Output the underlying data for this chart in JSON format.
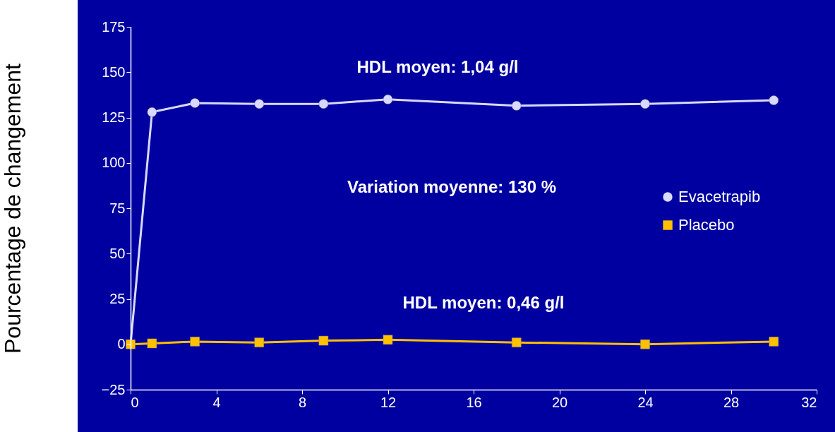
{
  "chart_data": {
    "type": "line",
    "ylabel": "Pourcentage de changement",
    "x": [
      0,
      1,
      3,
      6,
      9,
      12,
      18,
      24,
      30
    ],
    "series": [
      {
        "name": "Evacetrapib",
        "color": "#d9d9ff",
        "marker": "circle",
        "values": [
          0,
          128,
          133,
          132.5,
          132.5,
          135,
          131.5,
          132.5,
          134.5
        ]
      },
      {
        "name": "Placebo",
        "color": "#ffc000",
        "marker": "square",
        "values": [
          0,
          0.5,
          1.5,
          1,
          2,
          2.5,
          1,
          0,
          1.5
        ]
      }
    ],
    "xlim": [
      0,
      32
    ],
    "xticks": [
      0,
      4,
      8,
      12,
      16,
      20,
      24,
      28,
      32
    ],
    "ylim": [
      -25,
      175
    ],
    "yticks": [
      -25,
      0,
      25,
      50,
      75,
      100,
      125,
      150,
      175
    ],
    "grid": false,
    "legend": "right",
    "line_style": "solid",
    "annotations": [
      "HDL moyen: 1,04 g/l",
      "Variation moyenne: 130 %",
      "HDL moyen: 0,46 g/l"
    ]
  }
}
